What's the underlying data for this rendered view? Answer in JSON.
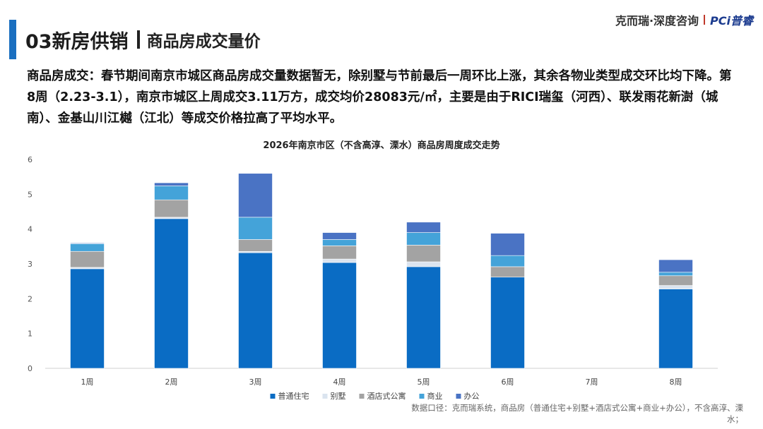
{
  "slide": {
    "section_title": "03新房供销",
    "sub_title": "商品房成交量价",
    "brand_name": "克而瑞·深度咨询",
    "brand_logo_text": "PCi普睿",
    "summary": "商品房成交：春节期间南京市城区商品房成交量数据暂无，除别墅与节前最后一周环比上涨，其余各物业类型成交环比均下降。第8周（2.23-3.1），南京市城区上周成交3.11万方，成交均价28083元/㎡，主要是由于RICI瑞玺（河西）、联发雨花新澍（城南）、金基山川江樾（江北）等成交价格拉高了平均水平。",
    "footnote": "数据口径：克而瑞系统，商品房（普通住宅+别墅+酒店式公寓+商业+办公），不含高淳、溧水；"
  },
  "colors": {
    "accent": "#1a6fc0",
    "brand_divider": "#c0392b",
    "series": [
      "#0a6cc4",
      "#dbe4ef",
      "#a3a3a3",
      "#44a3d9",
      "#4a73c4"
    ]
  },
  "chart_data": {
    "type": "bar",
    "stacked": true,
    "title": "2026年南京市区（不含高淳、溧水）商品房周度成交走势",
    "xlabel": "",
    "ylabel": "",
    "ylim": [
      0,
      6
    ],
    "yticks": [
      0,
      1,
      2,
      3,
      4,
      5,
      6
    ],
    "categories": [
      "1周",
      "2周",
      "3周",
      "4周",
      "5周",
      "6周",
      "7周",
      "8周"
    ],
    "series": [
      {
        "name": "普通住宅",
        "values": [
          2.86,
          4.3,
          3.32,
          3.04,
          2.92,
          2.62,
          0,
          2.28
        ]
      },
      {
        "name": "别墅",
        "values": [
          0.04,
          0.04,
          0.04,
          0.1,
          0.14,
          0,
          0,
          0.1
        ]
      },
      {
        "name": "酒店式公寓",
        "values": [
          0.46,
          0.5,
          0.34,
          0.38,
          0.48,
          0.3,
          0,
          0.28
        ]
      },
      {
        "name": "商业",
        "values": [
          0.22,
          0.4,
          0.64,
          0.18,
          0.36,
          0.32,
          0,
          0.1
        ]
      },
      {
        "name": "办公",
        "values": [
          0.02,
          0.09,
          1.26,
          0.2,
          0.3,
          0.64,
          0,
          0.36
        ]
      }
    ],
    "legend": "bottom"
  }
}
